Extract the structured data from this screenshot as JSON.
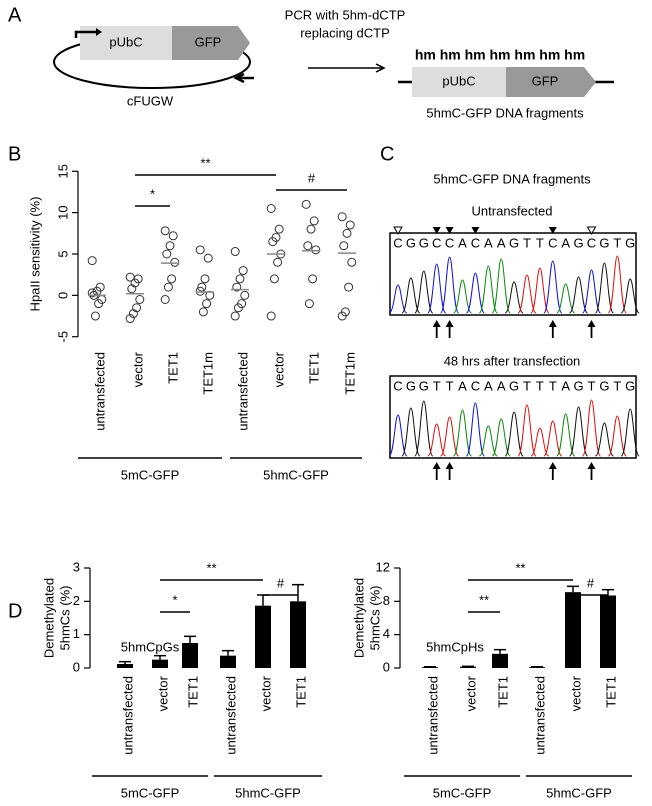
{
  "panel_labels": [
    "A",
    "B",
    "C",
    "D"
  ],
  "panel_a": {
    "plasmid_boxes": [
      "pUbC",
      "GFP"
    ],
    "plasmid_name": "cFUGW",
    "arrow_text": [
      "PCR with 5hm-dCTP",
      "replacing dCTP"
    ],
    "hm_marks": "hm hm hm hm hm hm hm",
    "fragment_boxes": [
      "pUbC",
      "GFP"
    ],
    "fragment_name": "5hmC-GFP DNA fragments"
  },
  "panel_c": {
    "title": "5hmC-GFP DNA fragments",
    "traces": [
      {
        "title": "Untransfected",
        "sequence": [
          "C",
          "G",
          "G",
          "C",
          "C",
          "A",
          "C",
          "A",
          "A",
          "G",
          "T",
          "T",
          "C",
          "A",
          "G",
          "C",
          "G",
          "T",
          "G"
        ]
      },
      {
        "title": "48 hrs after transfection",
        "sequence": [
          "C",
          "G",
          "G",
          "T",
          "T",
          "A",
          "C",
          "A",
          "A",
          "G",
          "T",
          "T",
          "T",
          "A",
          "G",
          "T",
          "G",
          "T",
          "G"
        ]
      }
    ]
  },
  "chart_data": [
    {
      "type": "strip",
      "ylabel": "HpaII sensitivity (%)",
      "categories": [
        "untransfected",
        "vector",
        "TET1",
        "TET1m",
        "untransfected",
        "vector",
        "TET1",
        "TET1m"
      ],
      "group_labels": [
        "5mC-GFP",
        "5hmC-GFP"
      ],
      "points": [
        [
          4.2,
          1.0,
          0.5,
          0.0,
          -0.5,
          -1.0,
          -2.5,
          0.3
        ],
        [
          2.2,
          2.0,
          1.5,
          0.8,
          -0.5,
          -1.5,
          -2.2,
          -2.8
        ],
        [
          7.8,
          7.2,
          6.0,
          5.0,
          4.0,
          2.0,
          1.0,
          -0.5
        ],
        [
          5.5,
          4.5,
          2.0,
          1.0,
          0.0,
          -1.0,
          -2.0,
          0.5
        ],
        [
          5.3,
          3.0,
          2.0,
          1.0,
          0.0,
          -1.0,
          -1.5,
          -2.5
        ],
        [
          10.5,
          8.0,
          7.0,
          6.5,
          5.0,
          4.0,
          2.0,
          -2.5
        ],
        [
          11.0,
          9.0,
          8.0,
          6.0,
          5.5,
          2.0,
          -1.0
        ],
        [
          9.5,
          8.5,
          7.5,
          6.0,
          4.0,
          1.0,
          -2.0,
          -2.5
        ]
      ],
      "means": [
        0.0,
        0.2,
        3.9,
        0.4,
        0.7,
        5.0,
        5.4,
        5.1
      ],
      "color": "#333333",
      "ylim": [
        -6,
        16
      ],
      "yticks": [
        -5,
        0,
        5,
        10,
        15
      ],
      "significance": [
        "**",
        "*",
        "#"
      ]
    },
    {
      "type": "bar",
      "title": "5hmCpGs",
      "ylabel": [
        "Demethylated",
        "5hmCs (%)"
      ],
      "categories": [
        "untransfected",
        "vector",
        "TET1",
        "untransfected",
        "vector",
        "TET1"
      ],
      "group_labels": [
        "5mC-GFP",
        "5hmC-GFP"
      ],
      "values": [
        0.12,
        0.25,
        0.75,
        0.37,
        1.87,
        2.0
      ],
      "errors": [
        0.07,
        0.12,
        0.2,
        0.15,
        0.32,
        0.5
      ],
      "color": "#000000",
      "ylim": [
        0,
        3
      ],
      "yticks": [
        0,
        1,
        2,
        3
      ],
      "significance": [
        "**",
        "*",
        "#"
      ]
    },
    {
      "type": "bar",
      "title": "5hmCpHs",
      "ylabel": [
        "Demethylated",
        "5hmCs (%)"
      ],
      "categories": [
        "untransfected",
        "vector",
        "TET1",
        "untransfected",
        "vector",
        "TET1"
      ],
      "group_labels": [
        "5mC-GFP",
        "5hmC-GFP"
      ],
      "values": [
        0.1,
        0.15,
        1.7,
        0.1,
        9.1,
        8.7
      ],
      "errors": [
        0.05,
        0.05,
        0.5,
        0.05,
        0.7,
        0.7
      ],
      "color": "#000000",
      "ylim": [
        0,
        12
      ],
      "yticks": [
        0,
        4,
        8,
        12
      ],
      "significance": [
        "**",
        "**",
        "#"
      ]
    }
  ]
}
